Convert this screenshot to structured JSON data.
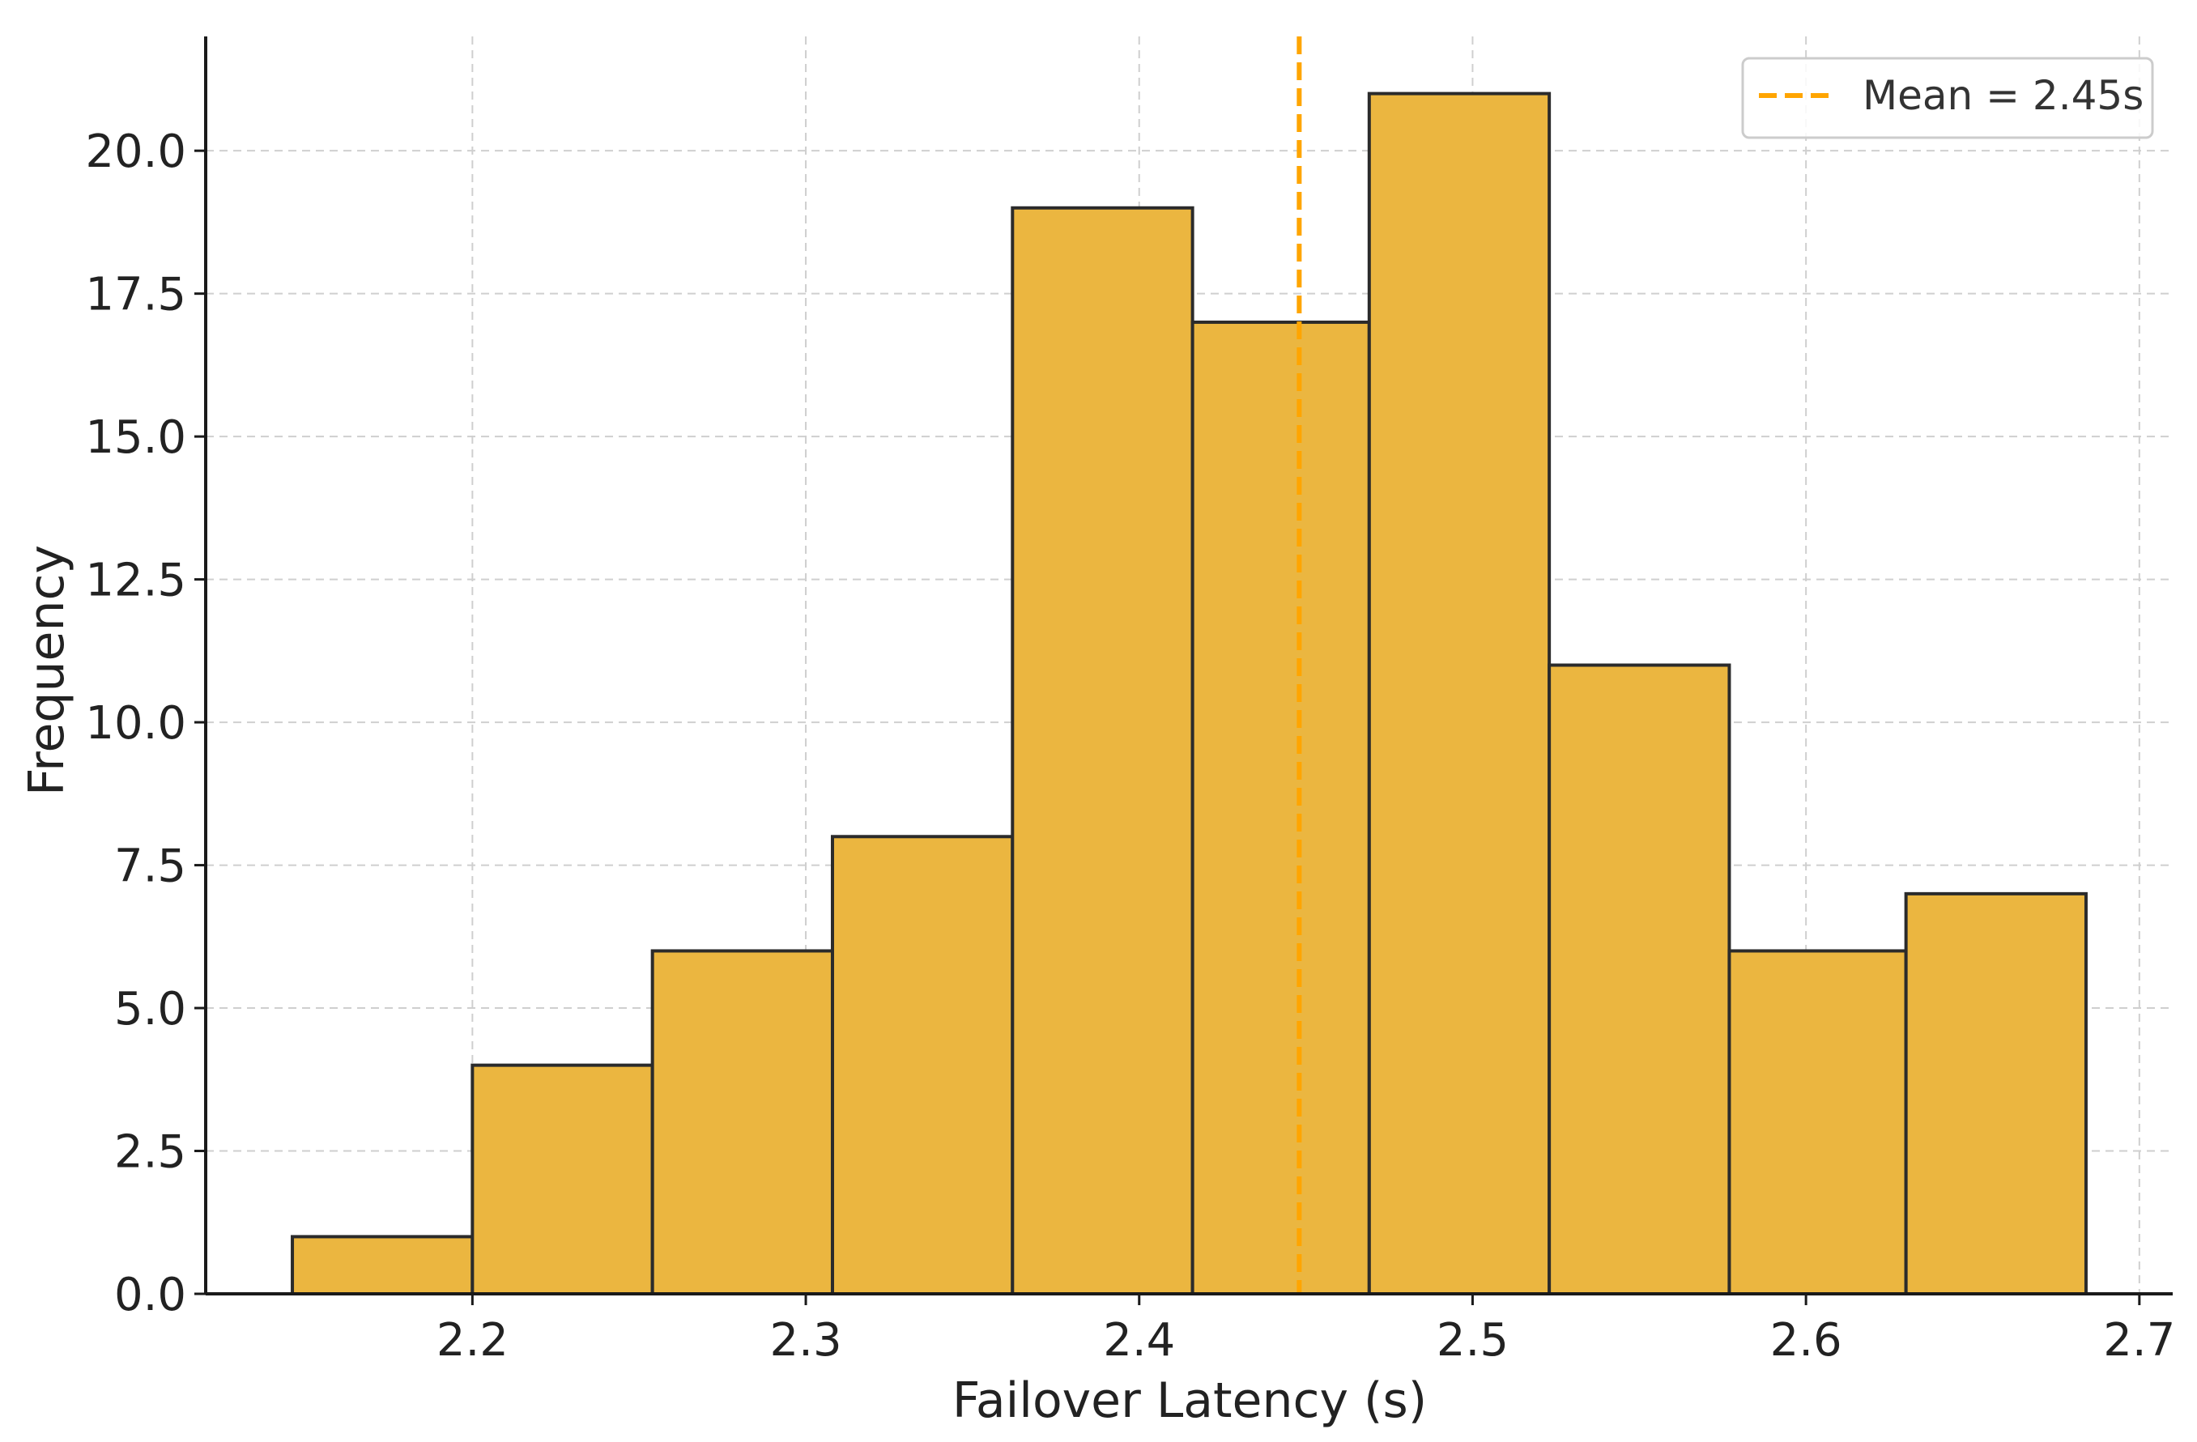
{
  "chart_data": {
    "type": "histogram",
    "title": "",
    "xlabel": "Failover Latency (s)",
    "ylabel": "Frequency",
    "xlim": [
      2.12,
      2.71
    ],
    "ylim": [
      0,
      22
    ],
    "xticks": [
      2.2,
      2.3,
      2.4,
      2.5,
      2.6,
      2.7
    ],
    "yticks": [
      0.0,
      2.5,
      5.0,
      7.5,
      10.0,
      12.5,
      15.0,
      17.5,
      20.0
    ],
    "xtick_labels": [
      "2.2",
      "2.3",
      "2.4",
      "2.5",
      "2.6",
      "2.7"
    ],
    "ytick_labels": [
      "0.0",
      "2.5",
      "5.0",
      "7.5",
      "10.0",
      "12.5",
      "15.0",
      "17.5",
      "20.0"
    ],
    "bin_edges": [
      2.146,
      2.2,
      2.254,
      2.308,
      2.362,
      2.416,
      2.469,
      2.523,
      2.577,
      2.63,
      2.684
    ],
    "values": [
      1,
      4,
      6,
      8,
      19,
      17,
      21,
      11,
      6,
      7
    ],
    "bar_color": "#ebb640",
    "bar_edge_color": "#2b2b2b",
    "mean": 2.448,
    "mean_color": "#ffa500",
    "legend": {
      "placement": "top-right",
      "entries": [
        "Mean = 2.45s"
      ]
    },
    "grid": true
  }
}
